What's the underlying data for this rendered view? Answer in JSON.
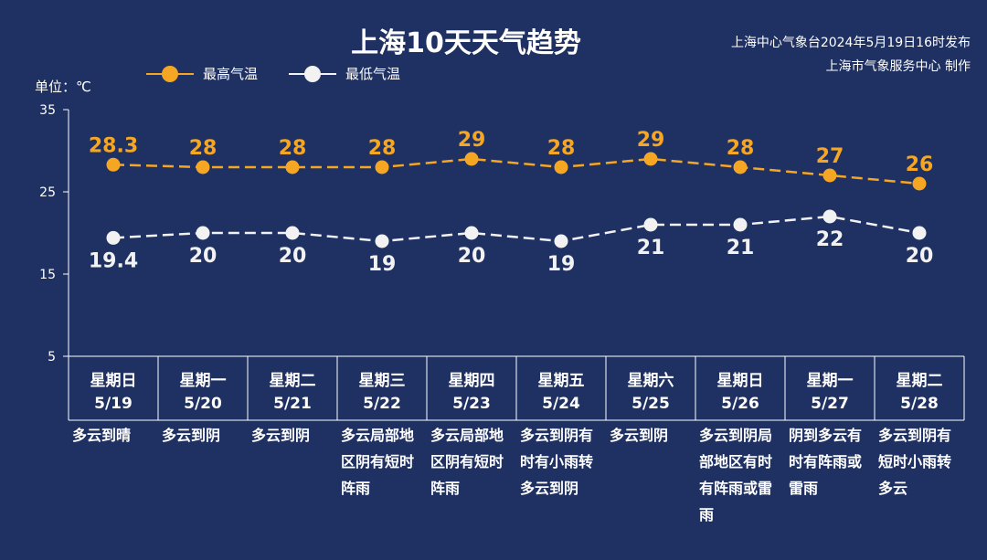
{
  "header": {
    "title": "上海10天天气趋势",
    "source_line1": "上海中心气象台2024年5月19日16时发布",
    "source_line2": "上海市气象服务中心 制作",
    "unit": "单位：℃"
  },
  "legend": [
    {
      "label": "最高气温",
      "color": "#f5a623"
    },
    {
      "label": "最低气温",
      "color": "#f2f2f2"
    }
  ],
  "chart_data": {
    "type": "line",
    "y_ticks": [
      5,
      15,
      25,
      35
    ],
    "ylim": [
      5,
      35
    ],
    "days": [
      {
        "weekday": "星期日",
        "date": "5/19",
        "weather": "多云到晴"
      },
      {
        "weekday": "星期一",
        "date": "5/20",
        "weather": "多云到阴"
      },
      {
        "weekday": "星期二",
        "date": "5/21",
        "weather": "多云到阴"
      },
      {
        "weekday": "星期三",
        "date": "5/22",
        "weather": "多云局部地区阴有短时阵雨"
      },
      {
        "weekday": "星期四",
        "date": "5/23",
        "weather": "多云局部地区阴有短时阵雨"
      },
      {
        "weekday": "星期五",
        "date": "5/24",
        "weather": "多云到阴有时有小雨转多云到阴"
      },
      {
        "weekday": "星期六",
        "date": "5/25",
        "weather": "多云到阴"
      },
      {
        "weekday": "星期日",
        "date": "5/26",
        "weather": "多云到阴局部地区有时有阵雨或雷雨"
      },
      {
        "weekday": "星期一",
        "date": "5/27",
        "weather": "阴到多云有时有阵雨或雷雨"
      },
      {
        "weekday": "星期二",
        "date": "5/28",
        "weather": "多云到阴有短时小雨转多云"
      }
    ],
    "series": [
      {
        "name": "最高气温",
        "color": "#f5a623",
        "values": [
          28.3,
          28,
          28,
          28,
          29,
          28,
          29,
          28,
          27,
          26
        ],
        "labels": [
          "28.3",
          "28",
          "28",
          "28",
          "29",
          "28",
          "29",
          "28",
          "27",
          "26"
        ]
      },
      {
        "name": "最低气温",
        "color": "#f2f2f2",
        "values": [
          19.4,
          20,
          20,
          19,
          20,
          19,
          21,
          21,
          22,
          20
        ],
        "labels": [
          "19.4",
          "20",
          "20",
          "19",
          "20",
          "19",
          "21",
          "21",
          "22",
          "20"
        ]
      }
    ]
  }
}
